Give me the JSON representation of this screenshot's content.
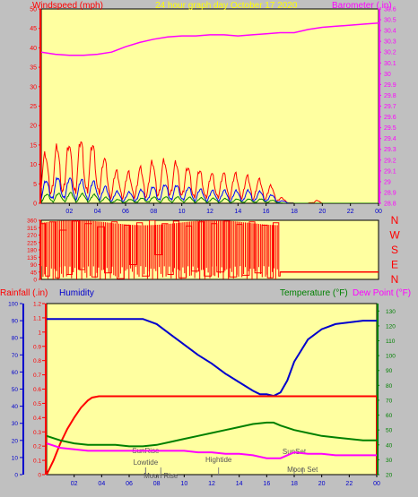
{
  "chart_data": [
    {
      "type": "line",
      "title": "24 hour graph day   October 17 2020",
      "left_axis_label": "Windspeed (mph)",
      "right_axis_label": "Barometer (.in)",
      "x_ticks": [
        "02",
        "04",
        "06",
        "08",
        "10",
        "12",
        "14",
        "16",
        "18",
        "20",
        "22",
        "00"
      ],
      "y_left_ticks": [
        "0",
        "5",
        "10",
        "15",
        "20",
        "25",
        "30",
        "35",
        "40",
        "45",
        "50"
      ],
      "y_left_range": [
        0,
        50
      ],
      "y_right_ticks": [
        "28.8",
        "28.9",
        "29",
        "29.1",
        "29.2",
        "29.3",
        "29.4",
        "29.5",
        "29.6",
        "29.7",
        "29.8",
        "29.9",
        "30",
        "30.1",
        "30.2",
        "30.3",
        "30.4",
        "30.5",
        "30.6"
      ],
      "y_right_range": [
        28.8,
        30.6
      ],
      "x_range_hours": [
        0,
        24
      ],
      "series": [
        {
          "axis": "right",
          "color": "#ff00ff",
          "x": [
            0,
            1,
            2,
            3,
            4,
            5,
            6,
            7,
            8,
            9,
            10,
            11,
            12,
            13,
            14,
            15,
            16,
            17,
            18,
            19,
            20,
            21,
            22,
            23,
            24
          ],
          "values": [
            30.2,
            30.18,
            30.17,
            30.17,
            30.18,
            30.2,
            30.25,
            30.29,
            30.32,
            30.34,
            30.35,
            30.35,
            30.36,
            30.36,
            30.35,
            30.36,
            30.37,
            30.38,
            30.38,
            30.41,
            30.43,
            30.44,
            30.45,
            30.46,
            30.47
          ]
        },
        {
          "axis": "left",
          "color": "#ff0000",
          "label_hint": "gust",
          "x": [
            0,
            1,
            2,
            3,
            4,
            5,
            6,
            7,
            8,
            9,
            10,
            11,
            12,
            13,
            14,
            15,
            16,
            16.8,
            17.2,
            18,
            19,
            19.5,
            20,
            21,
            22,
            23,
            24
          ],
          "values": [
            11,
            13,
            14,
            15,
            13,
            8,
            7,
            8,
            10,
            10,
            9,
            8,
            7,
            7,
            7,
            6,
            5,
            3,
            1,
            0,
            0,
            1,
            0,
            0,
            0,
            0,
            0
          ]
        },
        {
          "axis": "left",
          "color": "#0000ff",
          "label_hint": "average",
          "x": [
            0,
            1,
            2,
            3,
            4,
            5,
            6,
            7,
            8,
            9,
            10,
            11,
            12,
            13,
            14,
            15,
            16,
            16.8,
            17.2,
            18,
            24
          ],
          "values": [
            5,
            6,
            6,
            5.5,
            5,
            3,
            2.5,
            3,
            4,
            4.5,
            4,
            3.5,
            3,
            3,
            3,
            3,
            2.5,
            1.5,
            0.5,
            0,
            0
          ]
        },
        {
          "axis": "left",
          "color": "#008000",
          "label_hint": "min",
          "x": [
            0,
            2,
            4,
            5,
            6,
            8,
            10,
            12,
            14,
            16,
            16.8,
            17.2,
            24
          ],
          "values": [
            2,
            2.5,
            2,
            1,
            0.8,
            1.5,
            1.5,
            1.2,
            1,
            1,
            0.5,
            0,
            0
          ]
        }
      ]
    },
    {
      "type": "line",
      "right_labels": [
        "N",
        "W",
        "S",
        "E",
        "N"
      ],
      "y_left_ticks": [
        "0",
        "45",
        "90",
        "135",
        "180",
        "225",
        "270",
        "315",
        "360"
      ],
      "y_left_range": [
        0,
        360
      ],
      "x_ticks": [],
      "series": [
        {
          "color": "#ff0000",
          "label_hint": "wind direction",
          "x": [
            0,
            0.3,
            0.6,
            1.0,
            1.3,
            1.8,
            2.2,
            2.7,
            3.1,
            3.6,
            4.0,
            4.5,
            5.0,
            5.4,
            5.9,
            6.3,
            6.8,
            7.2,
            7.7,
            8.1,
            8.6,
            9.0,
            9.4,
            9.8,
            10.3,
            10.7,
            11.2,
            11.6,
            12.1,
            12.5,
            13.0,
            13.4,
            13.9,
            14.3,
            14.8,
            15.2,
            15.7,
            16.1,
            16.5,
            16.9,
            17.0,
            24
          ],
          "values": [
            340,
            20,
            350,
            10,
            300,
            30,
            355,
            60,
            340,
            15,
            320,
            40,
            350,
            5,
            330,
            90,
            345,
            20,
            360,
            150,
            340,
            30,
            355,
            10,
            325,
            50,
            350,
            20,
            340,
            45,
            355,
            15,
            335,
            25,
            350,
            40,
            330,
            10,
            345,
            20,
            45,
            45
          ]
        }
      ]
    },
    {
      "type": "line",
      "left_labels": [
        "Rainfall (.in)",
        "Humidity"
      ],
      "right_labels": [
        "Temperature (°F)",
        "Dew Point (°F)"
      ],
      "y_humidity_ticks": [
        "0",
        "10",
        "20",
        "30",
        "40",
        "50",
        "60",
        "70",
        "80",
        "90",
        "100"
      ],
      "y_humidity_range": [
        0,
        100
      ],
      "y_rain_ticks": [
        "0",
        "0.1",
        "0.2",
        "0.3",
        "0.4",
        "0.5",
        "0.6",
        "0.7",
        "0.8",
        "0.9",
        "1",
        "1.1",
        "1.2"
      ],
      "y_rain_range": [
        0,
        1.2
      ],
      "y_temp_ticks": [
        "20",
        "30",
        "40",
        "50",
        "60",
        "70",
        "80",
        "90",
        "100",
        "110",
        "120",
        "130"
      ],
      "y_temp_range": [
        20,
        135
      ],
      "x_ticks": [
        "02",
        "04",
        "06",
        "08",
        "10",
        "12",
        "14",
        "16",
        "18",
        "20",
        "22",
        "00"
      ],
      "annotations": [
        {
          "text": "SunRise",
          "hour": 7.2
        },
        {
          "text": "Lowtide",
          "hour": 7.2
        },
        {
          "text": "Moon Rise",
          "hour": 8.3
        },
        {
          "text": "Hightide",
          "hour": 12.5
        },
        {
          "text": "SunSet",
          "hour": 18.0
        },
        {
          "text": "Moon Set",
          "hour": 18.6
        }
      ],
      "series": [
        {
          "axis": "humidity",
          "color": "#0000cd",
          "x": [
            0,
            2,
            4,
            6,
            7,
            8,
            9,
            10,
            11,
            12,
            13,
            14,
            15,
            15.5,
            16,
            16.5,
            17,
            17.5,
            18,
            19,
            20,
            21,
            22,
            23,
            24
          ],
          "values": [
            91,
            91,
            91,
            91,
            91,
            88,
            82,
            76,
            70,
            65,
            59,
            54,
            49,
            47,
            47,
            46,
            48,
            55,
            66,
            79,
            85,
            88,
            89,
            90,
            90
          ]
        },
        {
          "axis": "rain",
          "color": "#ff0000",
          "x": [
            0,
            0.5,
            1,
            1.5,
            2,
            2.5,
            3,
            3.3,
            3.8,
            23.9,
            24,
            24
          ],
          "values": [
            0,
            0.1,
            0.22,
            0.32,
            0.4,
            0.47,
            0.52,
            0.54,
            0.55,
            0.55,
            0.55,
            0
          ]
        },
        {
          "axis": "temp",
          "color": "#008000",
          "x": [
            0,
            1,
            2,
            3,
            4,
            5,
            6,
            7,
            8,
            9,
            10,
            11,
            12,
            13,
            14,
            15,
            16,
            16.5,
            17,
            18,
            19,
            20,
            21,
            22,
            23,
            24
          ],
          "values": [
            46,
            43,
            41,
            40,
            40,
            40,
            39,
            39,
            40,
            42,
            44,
            46,
            48,
            50,
            52,
            54,
            55,
            55,
            53,
            50,
            48,
            46,
            45,
            44,
            43,
            43
          ]
        },
        {
          "axis": "temp",
          "color": "#ff00ff",
          "x": [
            0,
            1,
            2,
            3,
            4,
            5,
            6,
            7,
            8,
            9,
            10,
            11,
            12,
            13,
            14,
            15,
            16,
            17,
            17.5,
            18,
            19,
            20,
            21,
            22,
            23,
            24
          ],
          "values": [
            41,
            38,
            37,
            36,
            36,
            36,
            36,
            36,
            36,
            36,
            36,
            35,
            35,
            34,
            34,
            33,
            31,
            31,
            33,
            35,
            34,
            34,
            33,
            33,
            33,
            33
          ]
        }
      ]
    }
  ]
}
